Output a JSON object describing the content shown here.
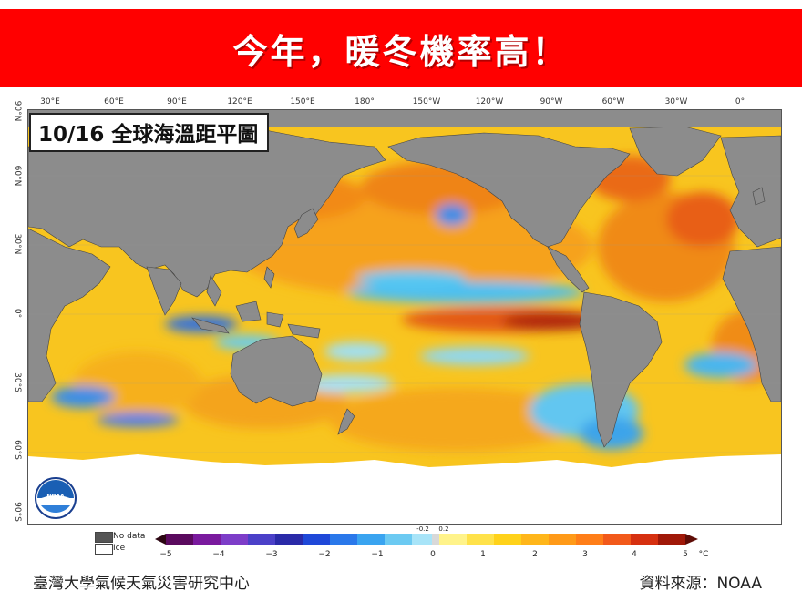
{
  "banner": {
    "title": "今年，暖冬機率高！",
    "bg_color": "#ff0000"
  },
  "map": {
    "title": "10/16 全球海溫距平圖",
    "longitude_labels": [
      "30°E",
      "60°E",
      "90°E",
      "120°E",
      "150°E",
      "180°",
      "150°W",
      "120°W",
      "90°W",
      "60°W",
      "30°W",
      "0°"
    ],
    "latitude_labels": [
      "90°N",
      "60°N",
      "30°N",
      "0°",
      "30°S",
      "60°S",
      "90°S"
    ],
    "logo_text": "NOAA"
  },
  "legend": {
    "no_data_label": "No data",
    "ice_label": "Ice",
    "no_data_color": "#555555",
    "ice_color": "#ffffff"
  },
  "colorbar": {
    "ticks": [
      "−5",
      "−4",
      "−3",
      "−2",
      "−1",
      "0",
      "1",
      "2",
      "3",
      "4",
      "5"
    ],
    "small_ticks": [
      "-0.2",
      "0.2"
    ],
    "unit": "°C",
    "colors": [
      "#3a0b1e",
      "#6b0f73",
      "#8a2bb8",
      "#2a2aa8",
      "#1f4fe0",
      "#2a8ef0",
      "#55c8f0",
      "#a8e4f8",
      "#d8d8d8",
      "#fff38a",
      "#ffd21a",
      "#ffae1a",
      "#ff8418",
      "#f2591a",
      "#d63010",
      "#a01808",
      "#5e0c06"
    ]
  },
  "footer": {
    "left": "臺灣大學氣候天氣災害研究中心",
    "right": "資料來源：NOAA"
  }
}
